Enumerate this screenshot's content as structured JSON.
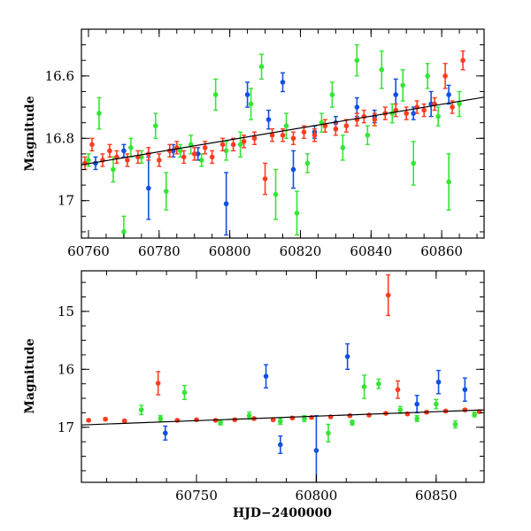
{
  "colors": {
    "red": "#ff3b1f",
    "green": "#33e633",
    "blue": "#1050e0",
    "fit": "#000000"
  },
  "chart_data": [
    {
      "type": "scatter",
      "title": "",
      "xlabel": "",
      "ylabel": "Magnitude",
      "xlim": [
        60758,
        60872
      ],
      "ylim": [
        17.12,
        16.45
      ],
      "inverted_y": true,
      "xticks": [
        60760,
        60780,
        60800,
        60820,
        60840,
        60860
      ],
      "xtick_labels": [
        "60760",
        "60780",
        "60800",
        "60820",
        "60840",
        "60860"
      ],
      "yticks": [
        16.6,
        16.8,
        17.0
      ],
      "ytick_labels": [
        "16.6",
        "16.8",
        "17"
      ],
      "grid": false,
      "fit_line": {
        "x": [
          60758,
          60872
        ],
        "y": [
          16.885,
          16.668
        ]
      },
      "series": [
        {
          "color": "green",
          "x": [
            60760,
            60763,
            60767,
            60770,
            60772,
            60775,
            60779,
            60782,
            60786,
            60789,
            60792,
            60796,
            60799,
            60803,
            60806,
            60809,
            60813,
            60816,
            60819,
            60822,
            60826,
            60829,
            60832,
            60836,
            60839,
            60843,
            60846,
            60849,
            60852,
            60856,
            60859,
            60862,
            60865
          ],
          "y": [
            16.87,
            16.72,
            16.9,
            17.1,
            16.83,
            16.86,
            16.76,
            16.97,
            16.84,
            16.82,
            16.87,
            16.66,
            16.84,
            16.82,
            16.69,
            16.57,
            16.98,
            16.76,
            17.04,
            16.88,
            16.75,
            16.66,
            16.83,
            16.55,
            16.79,
            16.58,
            16.72,
            16.63,
            16.88,
            16.6,
            16.73,
            16.94,
            16.69
          ],
          "err": [
            0.02,
            0.05,
            0.04,
            0.05,
            0.03,
            0.02,
            0.04,
            0.06,
            0.02,
            0.03,
            0.02,
            0.05,
            0.03,
            0.04,
            0.05,
            0.04,
            0.08,
            0.04,
            0.07,
            0.03,
            0.03,
            0.04,
            0.04,
            0.05,
            0.03,
            0.06,
            0.03,
            0.05,
            0.07,
            0.04,
            0.03,
            0.09,
            0.04
          ]
        },
        {
          "color": "blue",
          "x": [
            60762,
            60770,
            60777,
            60784,
            60791,
            60799,
            60805,
            60811,
            60815,
            60818,
            60824,
            60830,
            60836,
            60841,
            60847,
            60852,
            60857,
            60862
          ],
          "y": [
            16.88,
            16.84,
            16.96,
            16.84,
            16.85,
            17.01,
            16.66,
            16.74,
            16.62,
            16.9,
            16.78,
            16.75,
            16.7,
            16.73,
            16.66,
            16.72,
            16.69,
            16.66
          ],
          "err": [
            0.02,
            0.02,
            0.1,
            0.02,
            0.02,
            0.1,
            0.04,
            0.03,
            0.03,
            0.06,
            0.02,
            0.02,
            0.03,
            0.02,
            0.05,
            0.02,
            0.04,
            0.03
          ]
        },
        {
          "color": "red",
          "x": [
            60759,
            60761,
            60764,
            60766,
            60768,
            60771,
            60774,
            60777,
            60780,
            60783,
            60785,
            60787,
            60790,
            60793,
            60795,
            60798,
            60801,
            60804,
            60807,
            60810,
            60812,
            60815,
            60818,
            60821,
            60824,
            60827,
            60830,
            60833,
            60836,
            60838,
            60841,
            60844,
            60847,
            60850,
            60853,
            60855,
            60858,
            60861,
            60863,
            60866
          ],
          "y": [
            16.88,
            16.82,
            16.87,
            16.84,
            16.86,
            16.87,
            16.86,
            16.85,
            16.87,
            16.84,
            16.83,
            16.86,
            16.85,
            16.83,
            16.86,
            16.82,
            16.82,
            16.81,
            16.8,
            16.93,
            16.79,
            16.79,
            16.8,
            16.78,
            16.79,
            16.76,
            16.77,
            16.76,
            16.74,
            16.73,
            16.74,
            16.72,
            16.71,
            16.72,
            16.7,
            16.71,
            16.69,
            16.6,
            16.7,
            16.55
          ],
          "err": [
            0.02,
            0.02,
            0.02,
            0.02,
            0.02,
            0.02,
            0.02,
            0.02,
            0.02,
            0.02,
            0.02,
            0.02,
            0.02,
            0.02,
            0.02,
            0.02,
            0.02,
            0.02,
            0.02,
            0.05,
            0.02,
            0.02,
            0.02,
            0.02,
            0.02,
            0.02,
            0.02,
            0.02,
            0.02,
            0.02,
            0.02,
            0.02,
            0.02,
            0.02,
            0.02,
            0.02,
            0.02,
            0.04,
            0.02,
            0.03
          ]
        }
      ]
    },
    {
      "type": "scatter",
      "title": "",
      "xlabel": "HJD−2400000",
      "ylabel": "Magnitude",
      "xlim": [
        60702,
        60870
      ],
      "ylim": [
        17.95,
        14.3
      ],
      "inverted_y": true,
      "xticks": [
        60750,
        60800,
        60850
      ],
      "xtick_labels": [
        "60750",
        "60800",
        "60850"
      ],
      "yticks": [
        15,
        16,
        17
      ],
      "ytick_labels": [
        "15",
        "16",
        "17"
      ],
      "grid": false,
      "fit_line": {
        "x": [
          60702,
          60870
        ],
        "y": [
          16.96,
          16.7
        ]
      },
      "series": [
        {
          "color": "green",
          "x": [
            60727,
            60735,
            60745,
            60760,
            60772,
            60785,
            60795,
            60805,
            60815,
            60820,
            60826,
            60835,
            60842,
            60850,
            60858,
            60866
          ],
          "y": [
            16.7,
            16.85,
            16.4,
            16.92,
            16.8,
            16.9,
            16.85,
            17.1,
            16.92,
            16.3,
            16.25,
            16.7,
            16.85,
            16.6,
            16.95,
            16.78
          ],
          "err": [
            0.08,
            0.05,
            0.12,
            0.04,
            0.06,
            0.05,
            0.05,
            0.15,
            0.04,
            0.2,
            0.08,
            0.06,
            0.05,
            0.08,
            0.06,
            0.04
          ]
        },
        {
          "color": "blue",
          "x": [
            60737,
            60779,
            60785,
            60800,
            60813,
            60842,
            60851,
            60862
          ],
          "y": [
            17.1,
            16.12,
            17.3,
            17.4,
            15.78,
            16.6,
            16.22,
            16.35
          ],
          "err": [
            0.12,
            0.2,
            0.15,
            0.6,
            0.22,
            0.15,
            0.2,
            0.2
          ]
        },
        {
          "color": "red",
          "x": [
            60705,
            60712,
            60720,
            60734,
            60742,
            60750,
            60758,
            60766,
            60774,
            60782,
            60790,
            60798,
            60806,
            60814,
            60822,
            60829,
            60830,
            60834,
            60838,
            60846,
            60854,
            60862,
            60868
          ],
          "y": [
            16.88,
            16.86,
            16.89,
            16.24,
            16.88,
            16.87,
            16.88,
            16.87,
            16.85,
            16.87,
            16.84,
            16.83,
            16.82,
            16.8,
            16.79,
            16.76,
            14.72,
            16.35,
            16.77,
            16.74,
            16.72,
            16.7,
            16.73
          ],
          "err": [
            0.02,
            0.02,
            0.02,
            0.2,
            0.02,
            0.02,
            0.02,
            0.02,
            0.02,
            0.02,
            0.02,
            0.02,
            0.02,
            0.02,
            0.02,
            0.02,
            0.35,
            0.15,
            0.02,
            0.02,
            0.02,
            0.02,
            0.02
          ]
        }
      ]
    }
  ]
}
